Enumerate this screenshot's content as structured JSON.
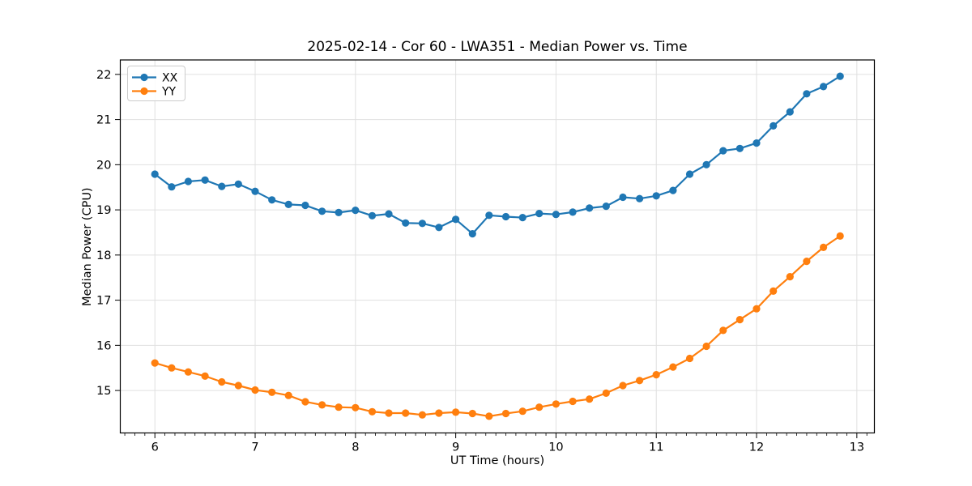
{
  "figure": {
    "background": "#ffffff"
  },
  "chart_data": {
    "type": "line",
    "title": "2025-02-14 - Cor 60 - LWA351 - Median Power vs. Time",
    "xlabel": "UT Time (hours)",
    "ylabel": "Median Power (CPU)",
    "x": [
      6.0,
      6.167,
      6.333,
      6.5,
      6.667,
      6.833,
      7.0,
      7.167,
      7.333,
      7.5,
      7.667,
      7.833,
      8.0,
      8.167,
      8.333,
      8.5,
      8.667,
      8.833,
      9.0,
      9.167,
      9.333,
      9.5,
      9.667,
      9.833,
      10.0,
      10.167,
      10.333,
      10.5,
      10.667,
      10.833,
      11.0,
      11.167,
      11.333,
      11.5,
      11.667,
      11.833,
      12.0,
      12.167,
      12.333,
      12.5,
      12.667,
      12.833
    ],
    "series": [
      {
        "name": "XX",
        "color": "#1f77b4",
        "values": [
          19.79,
          19.51,
          19.63,
          19.66,
          19.52,
          19.57,
          19.41,
          19.22,
          19.12,
          19.1,
          18.97,
          18.94,
          18.99,
          18.87,
          18.91,
          18.71,
          18.7,
          18.61,
          18.79,
          18.47,
          18.88,
          18.85,
          18.83,
          18.92,
          18.9,
          18.95,
          19.04,
          19.08,
          19.28,
          19.25,
          19.31,
          19.43,
          19.79,
          20.0,
          20.31,
          20.36,
          20.48,
          20.86,
          21.17,
          21.57,
          21.73,
          21.96
        ]
      },
      {
        "name": "YY",
        "color": "#ff7f0e",
        "values": [
          15.61,
          15.5,
          15.41,
          15.32,
          15.19,
          15.11,
          15.01,
          14.96,
          14.89,
          14.75,
          14.68,
          14.63,
          14.62,
          14.53,
          14.5,
          14.5,
          14.46,
          14.5,
          14.52,
          14.49,
          14.43,
          14.49,
          14.54,
          14.63,
          14.7,
          14.76,
          14.81,
          14.94,
          15.11,
          15.22,
          15.35,
          15.52,
          15.71,
          15.98,
          16.33,
          16.57,
          16.81,
          17.2,
          17.52,
          17.86,
          18.17,
          18.42
        ]
      }
    ],
    "xlim": [
      5.655,
      13.175
    ],
    "ylim": [
      14.06,
      22.32
    ],
    "xticks": [
      6,
      7,
      8,
      9,
      10,
      11,
      12,
      13
    ],
    "yticks": [
      15,
      16,
      17,
      18,
      19,
      20,
      21,
      22
    ],
    "x_minor_step": 0.1,
    "grid": true,
    "grid_color": "#e0e0e0",
    "axis_color": "#000000",
    "legend": {
      "position": "upper-left",
      "entries": [
        "XX",
        "YY"
      ]
    },
    "marker": "circle"
  }
}
